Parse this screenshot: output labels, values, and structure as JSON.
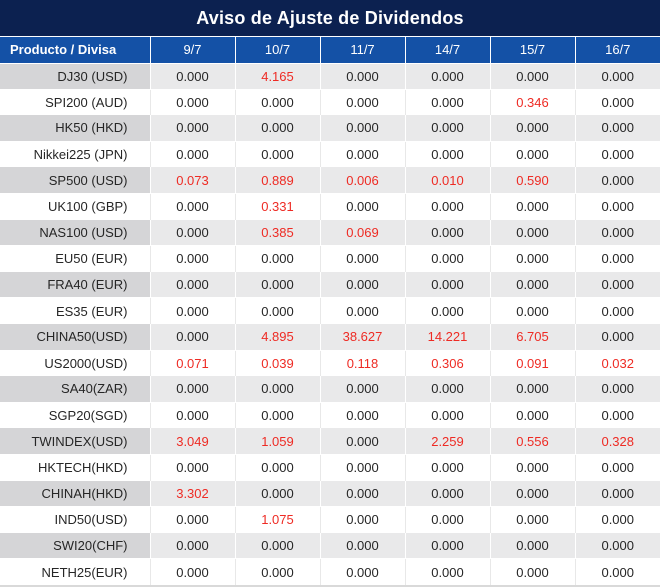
{
  "title": "Aviso de Ajuste de Dividendos",
  "table": {
    "product_header": "Producto / Divisa",
    "date_headers": [
      "9/7",
      "10/7",
      "11/7",
      "14/7",
      "15/7",
      "16/7"
    ],
    "rows": [
      {
        "product": "DJ30 (USD)",
        "values": [
          "0.000",
          "4.165",
          "0.000",
          "0.000",
          "0.000",
          "0.000"
        ],
        "red": [
          false,
          true,
          false,
          false,
          false,
          false
        ]
      },
      {
        "product": "SPI200 (AUD)",
        "values": [
          "0.000",
          "0.000",
          "0.000",
          "0.000",
          "0.346",
          "0.000"
        ],
        "red": [
          false,
          false,
          false,
          false,
          true,
          false
        ]
      },
      {
        "product": "HK50 (HKD)",
        "values": [
          "0.000",
          "0.000",
          "0.000",
          "0.000",
          "0.000",
          "0.000"
        ],
        "red": [
          false,
          false,
          false,
          false,
          false,
          false
        ]
      },
      {
        "product": "Nikkei225 (JPN)",
        "values": [
          "0.000",
          "0.000",
          "0.000",
          "0.000",
          "0.000",
          "0.000"
        ],
        "red": [
          false,
          false,
          false,
          false,
          false,
          false
        ]
      },
      {
        "product": "SP500 (USD)",
        "values": [
          "0.073",
          "0.889",
          "0.006",
          "0.010",
          "0.590",
          "0.000"
        ],
        "red": [
          true,
          true,
          true,
          true,
          true,
          false
        ]
      },
      {
        "product": "UK100 (GBP)",
        "values": [
          "0.000",
          "0.331",
          "0.000",
          "0.000",
          "0.000",
          "0.000"
        ],
        "red": [
          false,
          true,
          false,
          false,
          false,
          false
        ]
      },
      {
        "product": "NAS100 (USD)",
        "values": [
          "0.000",
          "0.385",
          "0.069",
          "0.000",
          "0.000",
          "0.000"
        ],
        "red": [
          false,
          true,
          true,
          false,
          false,
          false
        ]
      },
      {
        "product": "EU50 (EUR)",
        "values": [
          "0.000",
          "0.000",
          "0.000",
          "0.000",
          "0.000",
          "0.000"
        ],
        "red": [
          false,
          false,
          false,
          false,
          false,
          false
        ]
      },
      {
        "product": "FRA40 (EUR)",
        "values": [
          "0.000",
          "0.000",
          "0.000",
          "0.000",
          "0.000",
          "0.000"
        ],
        "red": [
          false,
          false,
          false,
          false,
          false,
          false
        ]
      },
      {
        "product": "ES35 (EUR)",
        "values": [
          "0.000",
          "0.000",
          "0.000",
          "0.000",
          "0.000",
          "0.000"
        ],
        "red": [
          false,
          false,
          false,
          false,
          false,
          false
        ]
      },
      {
        "product": "CHINA50(USD)",
        "values": [
          "0.000",
          "4.895",
          "38.627",
          "14.221",
          "6.705",
          "0.000"
        ],
        "red": [
          false,
          true,
          true,
          true,
          true,
          false
        ]
      },
      {
        "product": "US2000(USD)",
        "values": [
          "0.071",
          "0.039",
          "0.118",
          "0.306",
          "0.091",
          "0.032"
        ],
        "red": [
          true,
          true,
          true,
          true,
          true,
          true
        ]
      },
      {
        "product": "SA40(ZAR)",
        "values": [
          "0.000",
          "0.000",
          "0.000",
          "0.000",
          "0.000",
          "0.000"
        ],
        "red": [
          false,
          false,
          false,
          false,
          false,
          false
        ]
      },
      {
        "product": "SGP20(SGD)",
        "values": [
          "0.000",
          "0.000",
          "0.000",
          "0.000",
          "0.000",
          "0.000"
        ],
        "red": [
          false,
          false,
          false,
          false,
          false,
          false
        ]
      },
      {
        "product": "TWINDEX(USD)",
        "values": [
          "3.049",
          "1.059",
          "0.000",
          "2.259",
          "0.556",
          "0.328"
        ],
        "red": [
          true,
          true,
          false,
          true,
          true,
          true
        ]
      },
      {
        "product": "HKTECH(HKD)",
        "values": [
          "0.000",
          "0.000",
          "0.000",
          "0.000",
          "0.000",
          "0.000"
        ],
        "red": [
          false,
          false,
          false,
          false,
          false,
          false
        ]
      },
      {
        "product": "CHINAH(HKD)",
        "values": [
          "3.302",
          "0.000",
          "0.000",
          "0.000",
          "0.000",
          "0.000"
        ],
        "red": [
          true,
          false,
          false,
          false,
          false,
          false
        ]
      },
      {
        "product": "IND50(USD)",
        "values": [
          "0.000",
          "1.075",
          "0.000",
          "0.000",
          "0.000",
          "0.000"
        ],
        "red": [
          false,
          true,
          false,
          false,
          false,
          false
        ]
      },
      {
        "product": "SWI20(CHF)",
        "values": [
          "0.000",
          "0.000",
          "0.000",
          "0.000",
          "0.000",
          "0.000"
        ],
        "red": [
          false,
          false,
          false,
          false,
          false,
          false
        ]
      },
      {
        "product": "NETH25(EUR)",
        "values": [
          "0.000",
          "0.000",
          "0.000",
          "0.000",
          "0.000",
          "0.000"
        ],
        "red": [
          false,
          false,
          false,
          false,
          false,
          false
        ]
      }
    ]
  },
  "colors": {
    "title_bg": "#0c2150",
    "header_bg": "#1451a6",
    "row_alt_bg": "#e9e9ea",
    "row_alt_product_bg": "#d5d5d7",
    "negative_value_color": "#ee2b24",
    "value_text_color": "#262626"
  }
}
